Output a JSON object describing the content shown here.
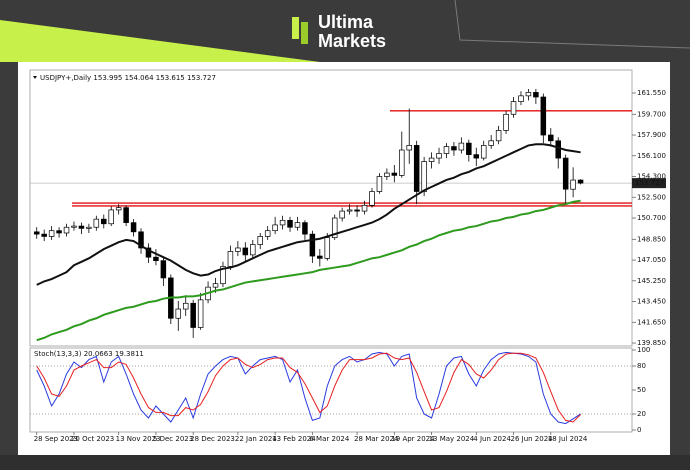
{
  "brand": {
    "line1": "Ultima",
    "line2": "Markets"
  },
  "chart_data": {
    "type": "candlestick",
    "title": "USDJPY+,Daily",
    "categories": [
      "28 Sep 2023",
      null,
      null,
      null,
      null,
      "20 Oct 2023",
      null,
      null,
      null,
      null,
      null,
      "13 Nov 2023",
      null,
      null,
      null,
      null,
      "5 Dec 2023",
      null,
      null,
      null,
      null,
      "28 Dec 2023",
      null,
      null,
      null,
      null,
      null,
      "22 Jan 2024",
      null,
      null,
      null,
      null,
      "13 Feb 2024",
      null,
      null,
      null,
      null,
      "6 Mar 2024",
      null,
      null,
      null,
      null,
      null,
      "28 Mar 2024",
      null,
      null,
      null,
      null,
      "19 Apr 2024",
      null,
      null,
      null,
      null,
      "13 May 2024",
      null,
      null,
      null,
      null,
      null,
      "4 Jun 2024",
      null,
      null,
      null,
      null,
      "26 Jun 2024",
      null,
      null,
      null,
      null,
      "18 Jul 2024",
      null,
      null,
      null,
      null
    ],
    "open": [
      149.5,
      149.3,
      149.1,
      149.6,
      149.4,
      149.9,
      150.0,
      149.8,
      149.9,
      150.6,
      150.2,
      151.4,
      151.6,
      150.3,
      149.5,
      148.1,
      147.3,
      147.0,
      145.5,
      142.0,
      142.8,
      143.3,
      141.2,
      143.6,
      144.7,
      145.0,
      146.5,
      147.8,
      148.1,
      147.5,
      148.4,
      149.1,
      149.6,
      150.1,
      150.5,
      149.9,
      150.3,
      149.3,
      147.4,
      147.2,
      149.0,
      150.7,
      151.3,
      151.4,
      151.3,
      151.8,
      153.0,
      154.3,
      154.6,
      154.4,
      156.6,
      157.0,
      153.0,
      155.6,
      155.9,
      156.3,
      156.9,
      156.6,
      157.2,
      156.2,
      155.9,
      157.0,
      157.4,
      158.3,
      159.7,
      160.8,
      161.3,
      161.6,
      161.2,
      157.9,
      157.4,
      155.9,
      153.2,
      153.995
    ],
    "high": [
      149.9,
      149.7,
      150.0,
      149.9,
      150.2,
      150.4,
      150.3,
      150.2,
      150.9,
      151.0,
      151.7,
      151.9,
      151.8,
      150.6,
      149.8,
      148.5,
      148.0,
      147.3,
      145.8,
      143.5,
      144.0,
      143.6,
      144.2,
      145.2,
      145.5,
      146.9,
      148.3,
      148.7,
      148.6,
      148.8,
      149.4,
      150.0,
      150.8,
      150.9,
      150.8,
      150.8,
      150.5,
      149.6,
      148.0,
      149.4,
      151.0,
      151.6,
      151.9,
      151.8,
      152.2,
      153.3,
      154.6,
      155.0,
      155.3,
      158.2,
      160.2,
      157.4,
      156.0,
      156.4,
      156.8,
      157.2,
      157.3,
      157.7,
      157.5,
      156.8,
      157.4,
      157.9,
      158.7,
      160.0,
      161.2,
      161.7,
      161.9,
      161.9,
      161.5,
      158.5,
      157.7,
      156.2,
      155.1,
      154.064
    ],
    "low": [
      148.9,
      148.7,
      148.8,
      149.0,
      149.1,
      149.6,
      149.3,
      149.4,
      149.6,
      149.8,
      150.0,
      151.0,
      150.0,
      149.1,
      147.6,
      146.8,
      146.6,
      144.8,
      141.5,
      140.9,
      142.2,
      140.3,
      141.0,
      143.3,
      144.2,
      144.7,
      146.2,
      147.4,
      147.0,
      147.2,
      148.0,
      148.8,
      149.3,
      149.7,
      149.5,
      149.6,
      148.8,
      146.8,
      146.5,
      147.0,
      148.8,
      150.4,
      151.0,
      150.8,
      151.0,
      151.6,
      152.8,
      154.0,
      153.8,
      154.2,
      155.4,
      151.9,
      152.6,
      155.0,
      155.4,
      155.9,
      156.1,
      156.3,
      155.6,
      155.2,
      155.7,
      156.7,
      157.1,
      158.0,
      159.4,
      160.5,
      160.9,
      160.6,
      157.2,
      156.9,
      155.0,
      151.9,
      152.5,
      153.615
    ],
    "close": [
      149.3,
      149.1,
      149.6,
      149.4,
      149.9,
      150.0,
      149.8,
      149.9,
      150.6,
      150.2,
      151.4,
      151.6,
      150.3,
      149.5,
      148.1,
      147.3,
      147.0,
      145.5,
      142.0,
      142.8,
      143.3,
      141.2,
      143.6,
      144.7,
      145.0,
      146.5,
      147.8,
      148.1,
      147.5,
      148.4,
      149.1,
      149.6,
      150.1,
      150.5,
      149.9,
      150.3,
      149.3,
      147.4,
      147.2,
      149.0,
      150.7,
      151.3,
      151.4,
      151.3,
      151.8,
      153.0,
      154.3,
      154.6,
      154.4,
      156.6,
      157.0,
      153.0,
      155.6,
      155.9,
      156.3,
      156.9,
      156.6,
      157.2,
      156.2,
      155.9,
      157.0,
      157.4,
      158.3,
      159.7,
      160.8,
      161.3,
      161.6,
      161.2,
      157.9,
      157.4,
      155.9,
      153.2,
      153.995,
      153.727
    ],
    "up_color": "#ffffff",
    "down_color": "#000000",
    "overlays": [
      {
        "color": "#111111",
        "values": [
          144.9,
          145.2,
          145.4,
          145.7,
          146.0,
          146.6,
          146.9,
          147.2,
          147.6,
          148.0,
          148.3,
          148.6,
          148.8,
          148.7,
          148.3,
          147.9,
          147.6,
          147.3,
          147.0,
          146.6,
          146.2,
          145.9,
          145.7,
          145.8,
          146.1,
          146.3,
          146.4,
          146.6,
          146.9,
          147.2,
          147.5,
          147.8,
          148.0,
          148.2,
          148.4,
          148.6,
          148.7,
          148.8,
          148.9,
          149.1,
          149.3,
          149.5,
          149.7,
          149.9,
          150.1,
          150.3,
          150.6,
          151.0,
          151.5,
          151.9,
          152.3,
          152.7,
          153.1,
          153.4,
          153.7,
          154.0,
          154.2,
          154.5,
          154.7,
          155.0,
          155.2,
          155.5,
          155.8,
          156.1,
          156.4,
          156.7,
          157.0,
          157.1,
          157.1,
          157.0,
          156.8,
          156.6,
          156.5,
          156.4
        ]
      },
      {
        "color": "#2e9a1e",
        "values": [
          140.1,
          140.3,
          140.6,
          140.8,
          141.0,
          141.3,
          141.5,
          141.8,
          142.0,
          142.3,
          142.5,
          142.7,
          142.9,
          143.0,
          143.2,
          143.4,
          143.5,
          143.7,
          143.8,
          143.8,
          143.9,
          143.9,
          144.0,
          144.2,
          144.4,
          144.5,
          144.7,
          144.9,
          145.1,
          145.2,
          145.3,
          145.4,
          145.5,
          145.6,
          145.7,
          145.8,
          145.9,
          146.0,
          146.2,
          146.3,
          146.4,
          146.5,
          146.6,
          146.8,
          147.0,
          147.2,
          147.3,
          147.5,
          147.7,
          147.9,
          148.2,
          148.4,
          148.7,
          148.9,
          149.2,
          149.4,
          149.6,
          149.7,
          149.9,
          150.0,
          150.2,
          150.4,
          150.5,
          150.7,
          150.8,
          151.0,
          151.1,
          151.3,
          151.4,
          151.6,
          151.8,
          151.9,
          152.1,
          152.2
        ]
      }
    ],
    "levels": [
      {
        "value": 160.0
      },
      {
        "value": 152.0
      },
      {
        "value": 151.75
      }
    ],
    "level_color": "#e01010",
    "ylim": [
      139.68,
      163.37
    ],
    "yticks": [
      {
        "value": 139.85,
        "label": "139.850"
      },
      {
        "value": 141.65,
        "label": "141.650"
      },
      {
        "value": 143.45,
        "label": "143.450"
      },
      {
        "value": 145.25,
        "label": "145.250"
      },
      {
        "value": 147.05,
        "label": "147.050"
      },
      {
        "value": 148.85,
        "label": "148.850"
      },
      {
        "value": 150.7,
        "label": "150.700"
      },
      {
        "value": 152.5,
        "label": "152.500"
      },
      {
        "value": 154.3,
        "label": "154.300"
      },
      {
        "value": 156.1,
        "label": "156.100"
      },
      {
        "value": 157.9,
        "label": "157.900"
      },
      {
        "value": 159.7,
        "label": "159.700"
      },
      {
        "value": 161.55,
        "label": "161.550"
      }
    ],
    "indicator": {
      "title": "Stoch(13,3,3)",
      "ylim": [
        0,
        100
      ],
      "yticks": [
        0,
        20,
        50,
        80,
        100
      ],
      "levels": [
        20,
        80
      ],
      "series": [
        {
          "color": "#2a3ae0",
          "values": [
            75,
            55,
            30,
            45,
            70,
            85,
            78,
            88,
            92,
            60,
            85,
            92,
            70,
            45,
            25,
            15,
            30,
            20,
            10,
            25,
            40,
            15,
            45,
            70,
            80,
            88,
            92,
            90,
            70,
            80,
            88,
            90,
            92,
            88,
            60,
            75,
            40,
            12,
            15,
            55,
            80,
            88,
            92,
            85,
            88,
            95,
            97,
            95,
            80,
            92,
            95,
            40,
            20,
            15,
            45,
            80,
            90,
            92,
            70,
            55,
            75,
            88,
            95,
            97,
            96,
            95,
            92,
            85,
            45,
            20,
            10,
            8,
            14,
            20.0663
          ]
        },
        {
          "color": "#e82020",
          "values": [
            80,
            65,
            45,
            42,
            55,
            75,
            80,
            84,
            88,
            78,
            78,
            85,
            82,
            65,
            45,
            28,
            22,
            22,
            18,
            18,
            28,
            25,
            32,
            48,
            68,
            80,
            88,
            90,
            82,
            78,
            82,
            88,
            90,
            90,
            78,
            72,
            58,
            40,
            22,
            30,
            55,
            75,
            88,
            88,
            88,
            90,
            95,
            96,
            90,
            88,
            90,
            72,
            48,
            25,
            28,
            48,
            72,
            88,
            82,
            70,
            65,
            75,
            88,
            95,
            96,
            96,
            94,
            90,
            72,
            48,
            25,
            12,
            10,
            19.3811
          ]
        }
      ]
    }
  }
}
